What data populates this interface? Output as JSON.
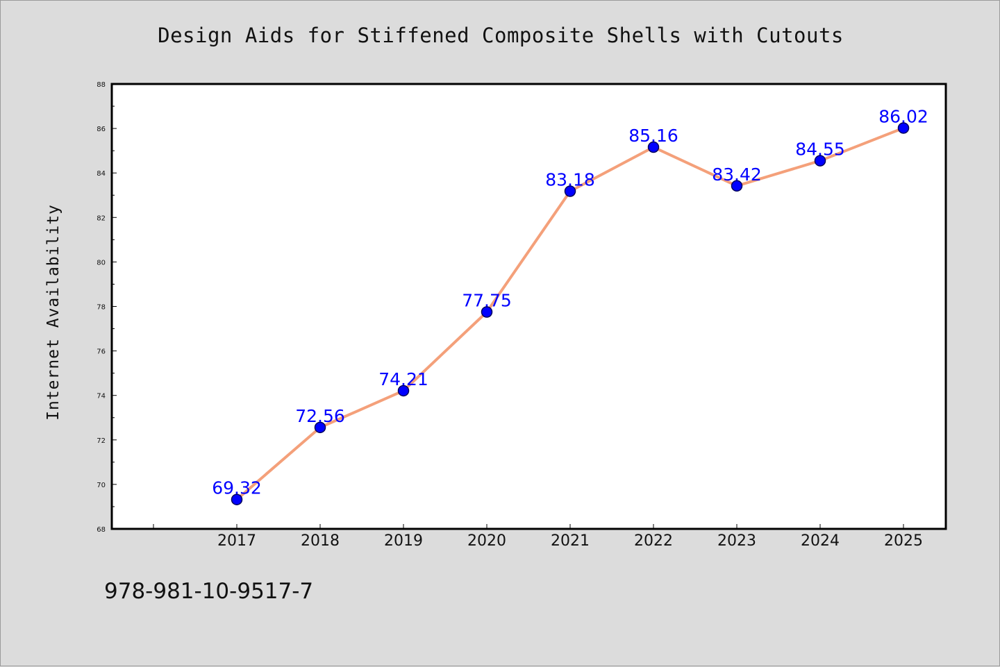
{
  "title": "Design Aids for Stiffened Composite Shells with Cutouts",
  "footer_code": "978-981-10-9517-7",
  "chart_data": {
    "type": "line",
    "title": "Design Aids for Stiffened Composite Shells with Cutouts",
    "xlabel": "",
    "ylabel": "Internet Availability",
    "categories": [
      "2017",
      "2018",
      "2019",
      "2020",
      "2021",
      "2022",
      "2023",
      "2024",
      "2025"
    ],
    "values": [
      69.32,
      72.56,
      74.21,
      77.75,
      83.18,
      85.16,
      83.42,
      84.55,
      86.02
    ],
    "data_labels": [
      "69.32",
      "72.56",
      "74.21",
      "77.75",
      "83.18",
      "85.16",
      "83.42",
      "84.55",
      "86.02"
    ],
    "ylim": [
      68,
      88
    ],
    "yticks": [
      68,
      70,
      72,
      74,
      76,
      78,
      80,
      82,
      84,
      86,
      88
    ],
    "grid": false,
    "legend": "none",
    "colors": {
      "line": "#f4a07a",
      "marker": "#0000ff",
      "marker_edge": "#00005a",
      "label": "#0000ff",
      "background": "#dcdcdc",
      "plot_bg": "#ffffff"
    }
  }
}
